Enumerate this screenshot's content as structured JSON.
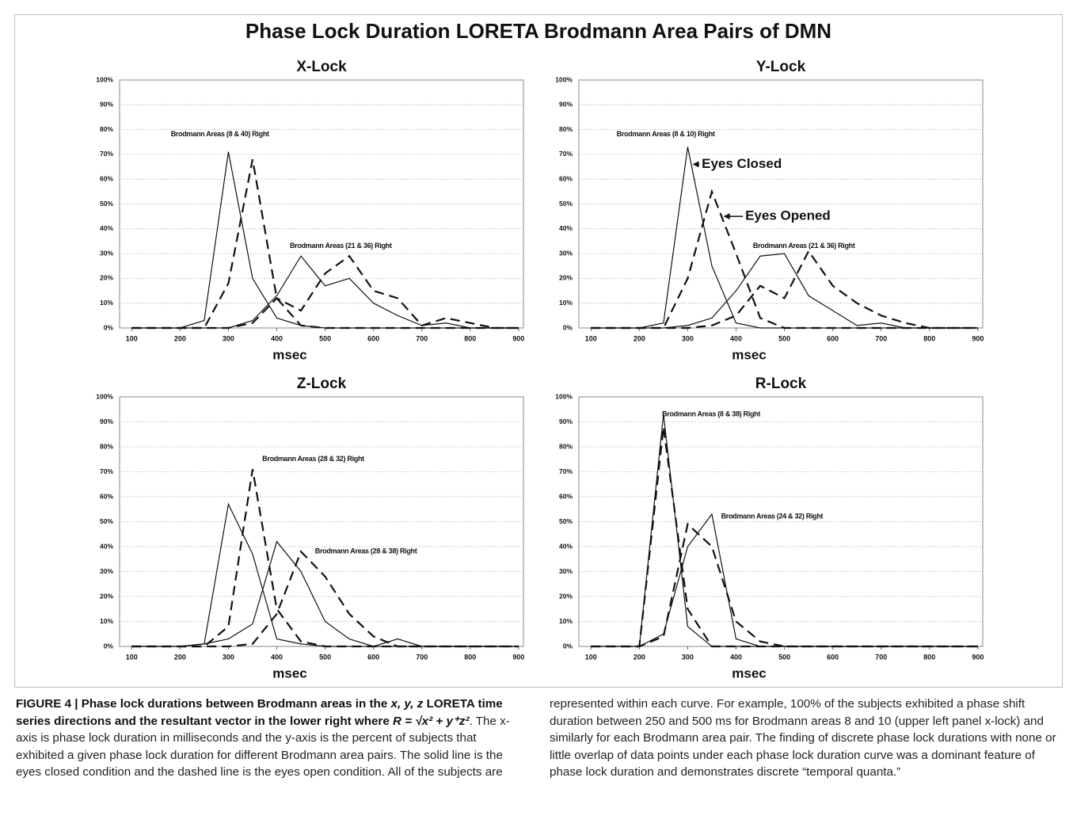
{
  "title": "Phase Lock Duration LORETA Brodmann Area Pairs of DMN",
  "chart_data": [
    {
      "type": "line",
      "title": "X-Lock",
      "xlabel": "msec",
      "x": [
        100,
        150,
        200,
        250,
        300,
        350,
        400,
        450,
        500,
        550,
        600,
        650,
        700,
        750,
        800,
        850,
        900
      ],
      "xlim": [
        75,
        910
      ],
      "xticks": [
        100,
        200,
        300,
        400,
        500,
        600,
        700,
        800,
        900
      ],
      "ylim": [
        0,
        100
      ],
      "yticks": [
        {
          "value": 0,
          "label": "0%"
        },
        {
          "value": 10,
          "label": "10%"
        },
        {
          "value": 20,
          "label": "20%"
        },
        {
          "value": 30,
          "label": "30%"
        },
        {
          "value": 40,
          "label": "40%"
        },
        {
          "value": 50,
          "label": "50%"
        },
        {
          "value": 60,
          "label": "60%"
        },
        {
          "value": 70,
          "label": "70%"
        },
        {
          "value": 80,
          "label": "80%"
        },
        {
          "value": 90,
          "label": "90%"
        },
        {
          "value": 100,
          "label": "100%"
        }
      ],
      "grid": true,
      "series": [
        {
          "color": "#111111",
          "dashed": false,
          "values": [
            0,
            0,
            0,
            3,
            71,
            20,
            4,
            1,
            0,
            0,
            0,
            0,
            0,
            0,
            0,
            0,
            0
          ]
        },
        {
          "color": "#111111",
          "dashed": true,
          "values": [
            0,
            0,
            0,
            0,
            18,
            68,
            12,
            1,
            0,
            0,
            0,
            0,
            0,
            0,
            0,
            0,
            0
          ]
        },
        {
          "color": "#111111",
          "dashed": false,
          "values": [
            0,
            0,
            0,
            0,
            0,
            3,
            13,
            29,
            17,
            20,
            10,
            5,
            1,
            2,
            0,
            0,
            0
          ]
        },
        {
          "color": "#111111",
          "dashed": true,
          "values": [
            0,
            0,
            0,
            0,
            0,
            2,
            12,
            7,
            22,
            29,
            15,
            12,
            1,
            4,
            2,
            0,
            0
          ]
        }
      ],
      "annotations": [
        {
          "text": "Brodmann Areas (8 & 40) Right"
        },
        {
          "text": "Brodmann Areas (21 & 36) Right"
        }
      ]
    },
    {
      "type": "line",
      "title": "Y-Lock",
      "xlabel": "msec",
      "x": [
        100,
        150,
        200,
        250,
        300,
        350,
        400,
        450,
        500,
        550,
        600,
        650,
        700,
        750,
        800,
        850,
        900
      ],
      "xlim": [
        75,
        910
      ],
      "xticks": [
        100,
        200,
        300,
        400,
        500,
        600,
        700,
        800,
        900
      ],
      "ylim": [
        0,
        100
      ],
      "yticks": [
        {
          "value": 0,
          "label": "0%"
        },
        {
          "value": 10,
          "label": "10%"
        },
        {
          "value": 20,
          "label": "20%"
        },
        {
          "value": 30,
          "label": "30%"
        },
        {
          "value": 40,
          "label": "40%"
        },
        {
          "value": 50,
          "label": "50%"
        },
        {
          "value": 60,
          "label": "60%"
        },
        {
          "value": 70,
          "label": "70%"
        },
        {
          "value": 80,
          "label": "80%"
        },
        {
          "value": 90,
          "label": "90%"
        },
        {
          "value": 100,
          "label": "100%"
        }
      ],
      "grid": true,
      "series": [
        {
          "color": "#111111",
          "dashed": false,
          "values": [
            0,
            0,
            0,
            2,
            73,
            25,
            2,
            0,
            0,
            0,
            0,
            0,
            0,
            0,
            0,
            0,
            0
          ]
        },
        {
          "color": "#111111",
          "dashed": true,
          "values": [
            0,
            0,
            0,
            0,
            20,
            55,
            30,
            4,
            0,
            0,
            0,
            0,
            0,
            0,
            0,
            0,
            0
          ]
        },
        {
          "color": "#111111",
          "dashed": false,
          "values": [
            0,
            0,
            0,
            0,
            1,
            4,
            15,
            29,
            30,
            13,
            7,
            1,
            2,
            0,
            0,
            0,
            0
          ]
        },
        {
          "color": "#111111",
          "dashed": true,
          "values": [
            0,
            0,
            0,
            0,
            0,
            1,
            5,
            17,
            12,
            31,
            17,
            10,
            5,
            2,
            0,
            0,
            0
          ]
        }
      ],
      "annotations": [
        {
          "text": "Brodmann Areas (8 & 10) Right"
        },
        {
          "text": "Brodmann Areas (21 & 36) Right"
        },
        {
          "text": "Eyes Closed"
        },
        {
          "text": "Eyes Opened"
        }
      ]
    },
    {
      "type": "line",
      "title": "Z-Lock",
      "xlabel": "msec",
      "x": [
        100,
        150,
        200,
        250,
        300,
        350,
        400,
        450,
        500,
        550,
        600,
        650,
        700,
        750,
        800,
        850,
        900
      ],
      "xlim": [
        75,
        910
      ],
      "xticks": [
        100,
        200,
        300,
        400,
        500,
        600,
        700,
        800,
        900
      ],
      "ylim": [
        0,
        100
      ],
      "yticks": [
        {
          "value": 0,
          "label": "0%"
        },
        {
          "value": 10,
          "label": "10%"
        },
        {
          "value": 20,
          "label": "20%"
        },
        {
          "value": 30,
          "label": "30%"
        },
        {
          "value": 40,
          "label": "40%"
        },
        {
          "value": 50,
          "label": "50%"
        },
        {
          "value": 60,
          "label": "60%"
        },
        {
          "value": 70,
          "label": "70%"
        },
        {
          "value": 80,
          "label": "80%"
        },
        {
          "value": 90,
          "label": "90%"
        },
        {
          "value": 100,
          "label": "100%"
        }
      ],
      "grid": true,
      "series": [
        {
          "color": "#111111",
          "dashed": false,
          "values": [
            0,
            0,
            0,
            1,
            57,
            37,
            3,
            1,
            0,
            0,
            0,
            0,
            0,
            0,
            0,
            0,
            0
          ]
        },
        {
          "color": "#111111",
          "dashed": true,
          "values": [
            0,
            0,
            0,
            0,
            8,
            71,
            15,
            2,
            0,
            0,
            0,
            0,
            0,
            0,
            0,
            0,
            0
          ]
        },
        {
          "color": "#111111",
          "dashed": false,
          "values": [
            0,
            0,
            0,
            1,
            3,
            9,
            42,
            30,
            10,
            3,
            0,
            3,
            0,
            0,
            0,
            0,
            0
          ]
        },
        {
          "color": "#111111",
          "dashed": true,
          "values": [
            0,
            0,
            0,
            0,
            0,
            1,
            13,
            38,
            28,
            13,
            4,
            0,
            0,
            0,
            0,
            0,
            0
          ]
        }
      ],
      "annotations": [
        {
          "text": "Brodmann Areas (28 & 32) Right"
        },
        {
          "text": "Brodmann Areas (28 & 38) Right"
        }
      ]
    },
    {
      "type": "line",
      "title": "R-Lock",
      "xlabel": "msec",
      "x": [
        100,
        150,
        200,
        250,
        300,
        350,
        400,
        450,
        500,
        550,
        600,
        650,
        700,
        750,
        800,
        850,
        900
      ],
      "xlim": [
        75,
        910
      ],
      "xticks": [
        100,
        200,
        300,
        400,
        500,
        600,
        700,
        800,
        900
      ],
      "ylim": [
        0,
        100
      ],
      "yticks": [
        {
          "value": 0,
          "label": "0%"
        },
        {
          "value": 10,
          "label": "10%"
        },
        {
          "value": 20,
          "label": "20%"
        },
        {
          "value": 30,
          "label": "30%"
        },
        {
          "value": 40,
          "label": "40%"
        },
        {
          "value": 50,
          "label": "50%"
        },
        {
          "value": 60,
          "label": "60%"
        },
        {
          "value": 70,
          "label": "70%"
        },
        {
          "value": 80,
          "label": "80%"
        },
        {
          "value": 90,
          "label": "90%"
        },
        {
          "value": 100,
          "label": "100%"
        }
      ],
      "grid": true,
      "series": [
        {
          "color": "#111111",
          "dashed": false,
          "values": [
            0,
            0,
            0,
            93,
            8,
            0,
            0,
            0,
            0,
            0,
            0,
            0,
            0,
            0,
            0,
            0,
            0
          ]
        },
        {
          "color": "#111111",
          "dashed": true,
          "values": [
            0,
            0,
            0,
            88,
            15,
            0,
            0,
            0,
            0,
            0,
            0,
            0,
            0,
            0,
            0,
            0,
            0
          ]
        },
        {
          "color": "#111111",
          "dashed": false,
          "values": [
            0,
            0,
            0,
            5,
            40,
            53,
            3,
            0,
            0,
            0,
            0,
            0,
            0,
            0,
            0,
            0,
            0
          ]
        },
        {
          "color": "#111111",
          "dashed": true,
          "values": [
            0,
            0,
            0,
            4,
            49,
            40,
            10,
            2,
            0,
            0,
            0,
            0,
            0,
            0,
            0,
            0,
            0
          ]
        }
      ],
      "annotations": [
        {
          "text": "Brodmann Areas (8 & 38) Right"
        },
        {
          "text": "Brodmann Areas (24 & 32) Right"
        }
      ]
    }
  ],
  "caption": {
    "label": "FIGURE 4 | Phase lock durations between Brodmann areas in the",
    "vars": "x, y, z",
    "bold": "LORETA time series directions and the resultant vector in the lower right where",
    "formula": "R = √x² + y⁺z²",
    "text": ". The x-axis is phase lock duration in milliseconds and the y-axis is the percent of subjects that exhibited a given phase lock duration for different Brodmann area pairs. The solid line is the eyes closed condition and the dashed line is the eyes open condition. All of the subjects are represented within each curve. For example, 100% of the subjects exhibited a phase shift duration between 250 and 500 ms for Brodmann areas 8 and 10 (upper left panel x-lock) and similarly for each Brodmann area pair. The finding of discrete phase lock durations with none or little overlap of data points under each phase lock duration curve was a dominant feature of phase lock duration and demonstrates discrete “temporal quanta.”"
  }
}
